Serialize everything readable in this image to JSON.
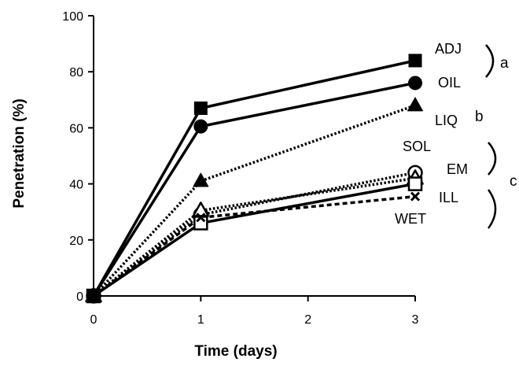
{
  "chart_data": {
    "type": "line",
    "x": [
      0,
      1,
      3
    ],
    "xlabel": "Time   (days)",
    "ylabel": "Penetration   (%)",
    "xlim": [
      0,
      3
    ],
    "ylim": [
      0,
      100
    ],
    "xticks": [
      "0",
      "1",
      "2",
      "3"
    ],
    "yticks": [
      "0",
      "20",
      "40",
      "60",
      "80",
      "100"
    ],
    "grid": false,
    "series": [
      {
        "name": "ADJ",
        "values": [
          0,
          67,
          84
        ],
        "marker": "filled-square",
        "line": "solid"
      },
      {
        "name": "OIL",
        "values": [
          0,
          60.5,
          76
        ],
        "marker": "filled-circle",
        "line": "solid"
      },
      {
        "name": "LIQ",
        "values": [
          0,
          41,
          68
        ],
        "marker": "filled-triangle",
        "line": "dotted"
      },
      {
        "name": "SOL",
        "values": [
          0,
          29,
          44
        ],
        "marker": "open-circle",
        "line": "dotted"
      },
      {
        "name": "EM",
        "values": [
          0,
          30.5,
          42
        ],
        "marker": "open-triangle",
        "line": "dotted"
      },
      {
        "name": "ILL",
        "values": [
          0,
          26,
          40
        ],
        "marker": "open-square",
        "line": "solid"
      },
      {
        "name": "WET",
        "values": [
          0,
          28,
          35.5
        ],
        "marker": "cross",
        "line": "dashed"
      }
    ],
    "groups": [
      {
        "label": "a",
        "members": [
          "ADJ",
          "OIL"
        ]
      },
      {
        "label": "b",
        "members": [
          "LIQ"
        ]
      },
      {
        "label": "c",
        "members": [
          "SOL",
          "EM",
          "ILL",
          "WET"
        ]
      }
    ]
  }
}
